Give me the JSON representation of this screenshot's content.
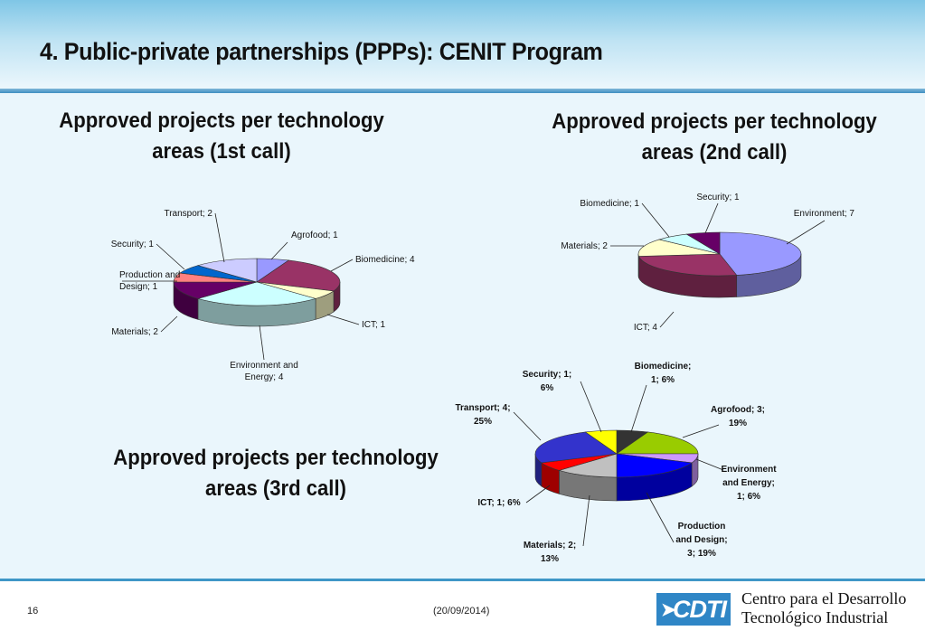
{
  "slide": {
    "title": "4. Public-private partnerships (PPPs): CENIT Program",
    "page_number": "16",
    "date": "(20/09/2014)"
  },
  "logo": {
    "text": "CDTI"
  },
  "organization": {
    "line1": "Centro para el Desarrollo",
    "line2": "Tecnológico Industrial"
  },
  "chart_data": [
    {
      "type": "pie",
      "title": "Approved projects per technology areas (1st call)",
      "title_lines": [
        "Approved projects per technology",
        "areas (1st call)"
      ],
      "slices": [
        {
          "label": "Agrofood; 1",
          "name": "Agrofood",
          "value": 1,
          "color": "#9999ff"
        },
        {
          "label": "Biomedicine; 4",
          "name": "Biomedicine",
          "value": 4,
          "color": "#993366"
        },
        {
          "label": "ICT; 1",
          "name": "ICT",
          "value": 1,
          "color": "#ffffcc"
        },
        {
          "label": "Environment and Energy; 4",
          "name": "Environment and Energy",
          "value": 4,
          "color": "#ccffff"
        },
        {
          "label": "Materials; 2",
          "name": "Materials",
          "value": 2,
          "color": "#660066"
        },
        {
          "label": "Production and Design; 1",
          "name": "Production and Design",
          "value": 1,
          "color": "#ff8080"
        },
        {
          "label": "Security; 1",
          "name": "Security",
          "value": 1,
          "color": "#0066cc"
        },
        {
          "label": "Transport; 2",
          "name": "Transport",
          "value": 2,
          "color": "#ccccff"
        }
      ]
    },
    {
      "type": "pie",
      "title": "Approved projects per technology areas (2nd call)",
      "title_lines": [
        "Approved projects per technology",
        "areas (2nd call)"
      ],
      "slices": [
        {
          "label": "Environment; 7",
          "name": "Environment",
          "value": 7,
          "color": "#9999ff"
        },
        {
          "label": "ICT; 4",
          "name": "ICT",
          "value": 4,
          "color": "#993366"
        },
        {
          "label": "Materials; 2",
          "name": "Materials",
          "value": 2,
          "color": "#ffffcc"
        },
        {
          "label": "Biomedicine; 1",
          "name": "Biomedicine",
          "value": 1,
          "color": "#ccffff"
        },
        {
          "label": "Security; 1",
          "name": "Security",
          "value": 1,
          "color": "#660066"
        }
      ]
    },
    {
      "type": "pie",
      "title": "Approved projects per technology areas (3rd call)",
      "title_lines": [
        "Approved projects per technology",
        "areas (3rd call)"
      ],
      "slices": [
        {
          "label": "Biomedicine; 1; 6%",
          "label_lines": [
            "Biomedicine;",
            "1; 6%"
          ],
          "name": "Biomedicine",
          "value": 1,
          "percent": 6,
          "color": "#333333"
        },
        {
          "label": "Agrofood; 3; 19%",
          "label_lines": [
            "Agrofood; 3;",
            "19%"
          ],
          "name": "Agrofood",
          "value": 3,
          "percent": 19,
          "color": "#99cc00"
        },
        {
          "label": "Environment and Energy; 1; 6%",
          "label_lines": [
            "Environment",
            "and Energy;",
            "1; 6%"
          ],
          "name": "Environment and Energy",
          "value": 1,
          "percent": 6,
          "color": "#cc99ff"
        },
        {
          "label": "Production and Design; 3; 19%",
          "label_lines": [
            "Production",
            "and Design;",
            "3; 19%"
          ],
          "name": "Production and Design",
          "value": 3,
          "percent": 19,
          "color": "#0000ff"
        },
        {
          "label": "Materials; 2; 13%",
          "label_lines": [
            "Materials; 2;",
            "13%"
          ],
          "name": "Materials",
          "value": 2,
          "percent": 13,
          "color": "#c0c0c0"
        },
        {
          "label": "ICT; 1; 6%",
          "label_lines": [
            "ICT; 1; 6%"
          ],
          "name": "ICT",
          "value": 1,
          "percent": 6,
          "color": "#ff0000"
        },
        {
          "label": "Transport; 4; 25%",
          "label_lines": [
            "Transport; 4;",
            "25%"
          ],
          "name": "Transport",
          "value": 4,
          "percent": 25,
          "color": "#3333cc"
        },
        {
          "label": "Security; 1; 6%",
          "label_lines": [
            "Security; 1;",
            "6%"
          ],
          "name": "Security",
          "value": 1,
          "percent": 6,
          "color": "#ffff00"
        }
      ]
    }
  ]
}
